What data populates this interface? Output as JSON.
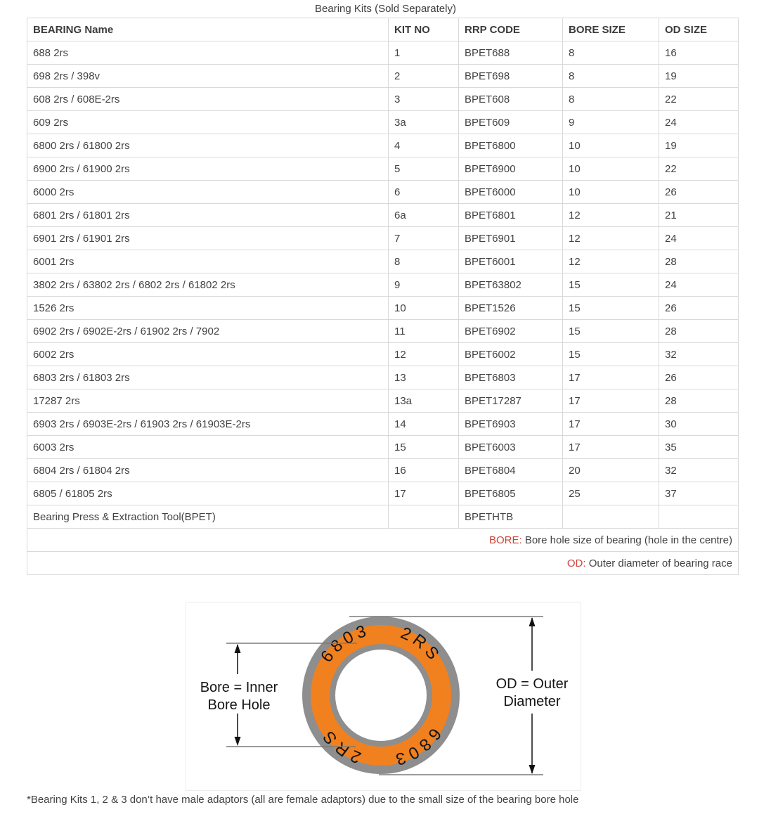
{
  "page": {
    "title": "Bearing Kits (Sold Separately)",
    "footnote": "*Bearing Kits 1, 2 & 3 don’t have male adaptors (all are female adaptors) due to the small size of the bearing bore hole"
  },
  "colors": {
    "note_red": "#cb4335",
    "seal_orange": "#f1801f",
    "race_grey": "#8e8e8e",
    "table_border_grey": "#d9d9d9"
  },
  "table": {
    "headers": [
      "BEARING Name",
      "KIT NO",
      "RRP CODE",
      "BORE SIZE",
      "OD SIZE"
    ],
    "rows": [
      {
        "name": "688 2rs",
        "kit": "1",
        "code": "BPET688",
        "bore": "8",
        "od": "16"
      },
      {
        "name": "698 2rs / 398v",
        "kit": "2",
        "code": "BPET698",
        "bore": "8",
        "od": "19"
      },
      {
        "name": "608 2rs / 608E-2rs",
        "kit": "3",
        "code": "BPET608",
        "bore": "8",
        "od": "22"
      },
      {
        "name": "609 2rs",
        "kit": "3a",
        "code": "BPET609",
        "bore": "9",
        "od": "24"
      },
      {
        "name": "6800 2rs / 61800 2rs",
        "kit": "4",
        "code": "BPET6800",
        "bore": "10",
        "od": "19"
      },
      {
        "name": "6900 2rs / 61900 2rs",
        "kit": "5",
        "code": "BPET6900",
        "bore": "10",
        "od": "22"
      },
      {
        "name": "6000 2rs",
        "kit": "6",
        "code": "BPET6000",
        "bore": "10",
        "od": "26"
      },
      {
        "name": "6801 2rs / 61801 2rs",
        "kit": "6a",
        "code": "BPET6801",
        "bore": "12",
        "od": "21"
      },
      {
        "name": "6901 2rs / 61901 2rs",
        "kit": "7",
        "code": "BPET6901",
        "bore": "12",
        "od": "24"
      },
      {
        "name": "6001 2rs",
        "kit": "8",
        "code": "BPET6001",
        "bore": "12",
        "od": "28"
      },
      {
        "name": "3802 2rs / 63802 2rs / 6802 2rs / 61802 2rs",
        "kit": "9",
        "code": "BPET63802",
        "bore": "15",
        "od": "24"
      },
      {
        "name": "1526 2rs",
        "kit": "10",
        "code": "BPET1526",
        "bore": "15",
        "od": "26"
      },
      {
        "name": "6902 2rs / 6902E-2rs / 61902 2rs / 7902",
        "kit": "11",
        "code": "BPET6902",
        "bore": "15",
        "od": "28"
      },
      {
        "name": "6002 2rs",
        "kit": "12",
        "code": "BPET6002",
        "bore": "15",
        "od": "32"
      },
      {
        "name": "6803 2rs / 61803 2rs",
        "kit": "13",
        "code": "BPET6803",
        "bore": "17",
        "od": "26"
      },
      {
        "name": "17287 2rs",
        "kit": "13a",
        "code": "BPET17287",
        "bore": "17",
        "od": "28"
      },
      {
        "name": "6903 2rs / 6903E-2rs / 61903 2rs / 61903E-2rs",
        "kit": "14",
        "code": "BPET6903",
        "bore": "17",
        "od": "30"
      },
      {
        "name": "6003 2rs",
        "kit": "15",
        "code": "BPET6003",
        "bore": "17",
        "od": "35"
      },
      {
        "name": "6804 2rs / 61804 2rs",
        "kit": "16",
        "code": "BPET6804",
        "bore": "20",
        "od": "32"
      },
      {
        "name": "6805 / 61805 2rs",
        "kit": "17",
        "code": "BPET6805",
        "bore": "25",
        "od": "37"
      },
      {
        "name": "Bearing Press & Extraction Tool(BPET)",
        "kit": "",
        "code": "BPETHTB",
        "bore": "",
        "od": ""
      }
    ],
    "notes": [
      {
        "label": "BORE:",
        "text": " Bore hole size of bearing (hole in the centre)"
      },
      {
        "label": "OD:",
        "text": " Outer diameter of bearing race"
      }
    ]
  },
  "diagram": {
    "bearing_marking": "6803 2RS",
    "bore_label_line1": "Bore = Inner",
    "bore_label_line2": "Bore Hole",
    "od_label_line1": "OD = Outer",
    "od_label_line2": "Diameter"
  }
}
